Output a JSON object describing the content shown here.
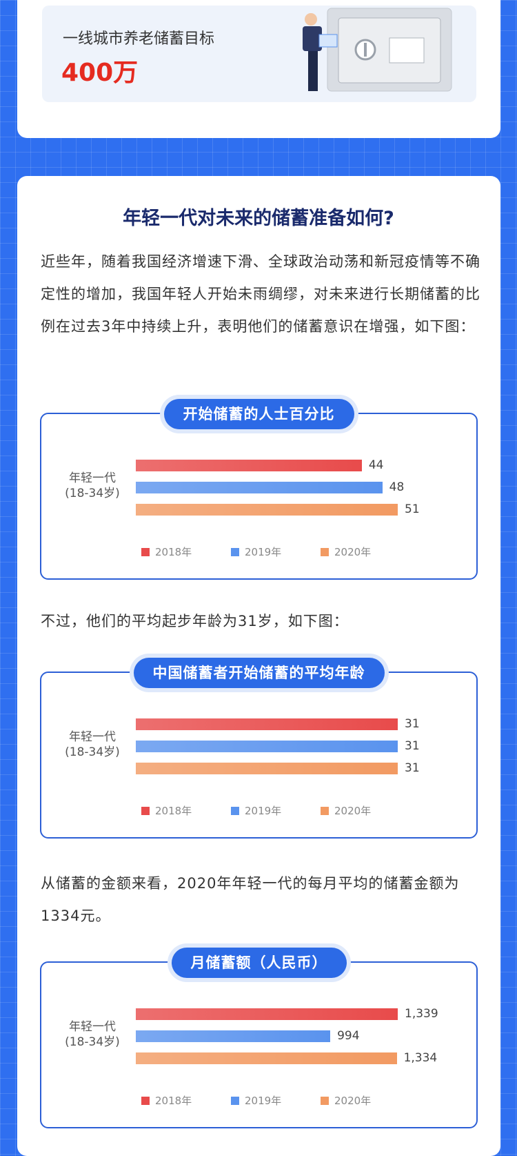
{
  "top_card": {
    "label": "一线城市养老储蓄目标",
    "amount": "400万"
  },
  "section": {
    "title": "年轻一代对未来的储蓄准备如何?",
    "paragraph_1": "近些年，随着我国经济增速下滑、全球政治动荡和新冠疫情等不确定性的增加，我国年轻人开始未雨绸缪，对未来进行长期储蓄的比例在过去3年中持续上升，表明他们的储蓄意识在增强，如下图：",
    "paragraph_2": "不过，他们的平均起步年龄为31岁，如下图：",
    "paragraph_3": "从储蓄的金额来看，2020年年轻一代的每月平均的储蓄金额为1334元。"
  },
  "chart_data": [
    {
      "type": "bar",
      "orientation": "horizontal",
      "title": "开始储蓄的人士百分比",
      "categories": [
        "年轻一代\n(18-34岁)"
      ],
      "series": [
        {
          "name": "2018年",
          "color": "#e84b4b",
          "values": [
            44
          ]
        },
        {
          "name": "2019年",
          "color": "#5a93ee",
          "values": [
            48
          ]
        },
        {
          "name": "2020年",
          "color": "#f29a62",
          "values": [
            51
          ]
        }
      ]
    },
    {
      "type": "bar",
      "orientation": "horizontal",
      "title": "中国储蓄者开始储蓄的平均年龄",
      "categories": [
        "年轻一代\n(18-34岁)"
      ],
      "series": [
        {
          "name": "2018年",
          "color": "#e84b4b",
          "values": [
            31
          ]
        },
        {
          "name": "2019年",
          "color": "#5a93ee",
          "values": [
            31
          ]
        },
        {
          "name": "2020年",
          "color": "#f29a62",
          "values": [
            31
          ]
        }
      ]
    },
    {
      "type": "bar",
      "orientation": "horizontal",
      "title": "月储蓄额（人民币）",
      "categories": [
        "年轻一代\n(18-34岁)"
      ],
      "series": [
        {
          "name": "2018年",
          "color": "#e84b4b",
          "values": [
            1339
          ],
          "value_labels": [
            "1,339"
          ]
        },
        {
          "name": "2019年",
          "color": "#5a93ee",
          "values": [
            994
          ]
        },
        {
          "name": "2020年",
          "color": "#f29a62",
          "values": [
            1334
          ],
          "value_labels": [
            "1,334"
          ]
        }
      ]
    }
  ]
}
